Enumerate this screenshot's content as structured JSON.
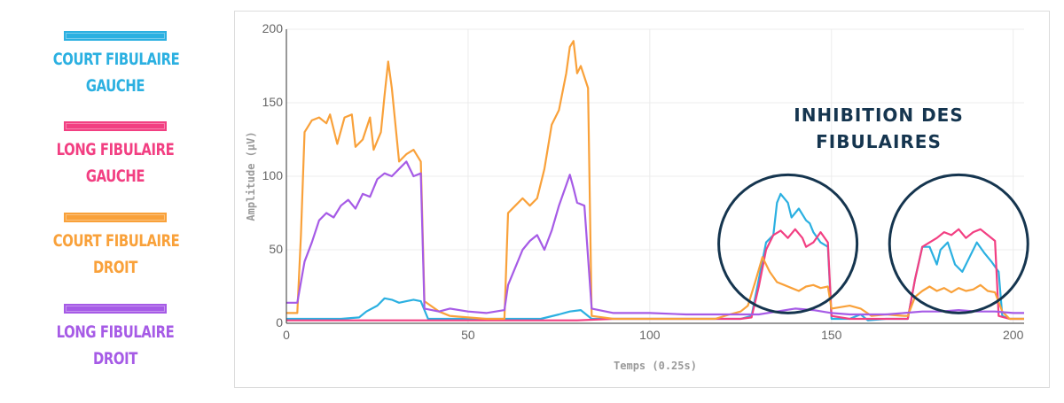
{
  "legend": [
    {
      "line1": "COURT FIBULAIRE",
      "line2": "GAUCHE",
      "color": "#2bb0e1"
    },
    {
      "line1": "LONG FIBULAIRE",
      "line2": "GAUCHE",
      "color": "#f23f82"
    },
    {
      "line1": "COURT FIBULAIRE",
      "line2": "DROIT",
      "color": "#f9a13a"
    },
    {
      "line1": "LONG FIBULAIRE",
      "line2": "DROIT",
      "color": "#a65be6"
    }
  ],
  "annotation": {
    "line1": "INHIBITION DES",
    "line2": "FIBULAIRES",
    "color": "#15354f"
  },
  "chart_data": {
    "type": "line",
    "title": "",
    "xlabel": "Temps (0.25s)",
    "ylabel": "Amplitude (µV)",
    "xlim": [
      0,
      203
    ],
    "ylim": [
      0,
      200
    ],
    "xticks": [
      0,
      50,
      100,
      150,
      200
    ],
    "yticks": [
      0,
      50,
      100,
      150,
      200
    ],
    "grid": true,
    "series": [
      {
        "name": "Court fibulaire gauche",
        "color": "#2bb0e1",
        "points": [
          [
            0,
            3
          ],
          [
            5,
            3
          ],
          [
            10,
            3
          ],
          [
            15,
            3
          ],
          [
            20,
            4
          ],
          [
            22,
            8
          ],
          [
            25,
            12
          ],
          [
            27,
            17
          ],
          [
            29,
            16
          ],
          [
            31,
            14
          ],
          [
            33,
            15
          ],
          [
            35,
            16
          ],
          [
            37,
            15
          ],
          [
            39,
            3
          ],
          [
            45,
            3
          ],
          [
            55,
            3
          ],
          [
            60,
            3
          ],
          [
            70,
            3
          ],
          [
            75,
            6
          ],
          [
            78,
            8
          ],
          [
            81,
            9
          ],
          [
            84,
            3
          ],
          [
            95,
            3
          ],
          [
            110,
            3
          ],
          [
            120,
            3
          ],
          [
            125,
            3
          ],
          [
            128,
            5
          ],
          [
            130,
            30
          ],
          [
            132,
            55
          ],
          [
            134,
            60
          ],
          [
            135,
            82
          ],
          [
            136,
            88
          ],
          [
            138,
            82
          ],
          [
            139,
            72
          ],
          [
            141,
            78
          ],
          [
            143,
            70
          ],
          [
            144,
            68
          ],
          [
            145,
            62
          ],
          [
            147,
            55
          ],
          [
            149,
            52
          ],
          [
            150,
            3
          ],
          [
            155,
            3
          ],
          [
            158,
            6
          ],
          [
            160,
            2
          ],
          [
            165,
            3
          ],
          [
            171,
            3
          ],
          [
            173,
            30
          ],
          [
            175,
            52
          ],
          [
            177,
            52
          ],
          [
            179,
            40
          ],
          [
            180,
            50
          ],
          [
            182,
            55
          ],
          [
            184,
            40
          ],
          [
            186,
            35
          ],
          [
            188,
            45
          ],
          [
            190,
            55
          ],
          [
            192,
            48
          ],
          [
            194,
            42
          ],
          [
            196,
            35
          ],
          [
            197,
            5
          ],
          [
            199,
            3
          ],
          [
            203,
            3
          ]
        ]
      },
      {
        "name": "Long fibulaire gauche",
        "color": "#f23f82",
        "points": [
          [
            0,
            2
          ],
          [
            10,
            2
          ],
          [
            20,
            2
          ],
          [
            30,
            2
          ],
          [
            40,
            2
          ],
          [
            50,
            2
          ],
          [
            60,
            2
          ],
          [
            70,
            2
          ],
          [
            80,
            2
          ],
          [
            90,
            3
          ],
          [
            100,
            3
          ],
          [
            110,
            3
          ],
          [
            120,
            3
          ],
          [
            125,
            3
          ],
          [
            128,
            4
          ],
          [
            130,
            25
          ],
          [
            132,
            50
          ],
          [
            134,
            60
          ],
          [
            136,
            63
          ],
          [
            138,
            58
          ],
          [
            140,
            64
          ],
          [
            142,
            58
          ],
          [
            143,
            52
          ],
          [
            145,
            55
          ],
          [
            147,
            62
          ],
          [
            149,
            55
          ],
          [
            150,
            5
          ],
          [
            155,
            3
          ],
          [
            165,
            3
          ],
          [
            171,
            3
          ],
          [
            173,
            30
          ],
          [
            175,
            52
          ],
          [
            177,
            55
          ],
          [
            179,
            58
          ],
          [
            181,
            62
          ],
          [
            183,
            60
          ],
          [
            185,
            64
          ],
          [
            187,
            58
          ],
          [
            189,
            62
          ],
          [
            191,
            64
          ],
          [
            193,
            60
          ],
          [
            195,
            56
          ],
          [
            196,
            5
          ],
          [
            199,
            3
          ],
          [
            203,
            3
          ]
        ]
      },
      {
        "name": "Court fibulaire droit",
        "color": "#f9a13a",
        "points": [
          [
            0,
            7
          ],
          [
            3,
            7
          ],
          [
            4,
            60
          ],
          [
            5,
            130
          ],
          [
            7,
            138
          ],
          [
            9,
            140
          ],
          [
            11,
            136
          ],
          [
            12,
            142
          ],
          [
            14,
            122
          ],
          [
            16,
            140
          ],
          [
            18,
            142
          ],
          [
            19,
            120
          ],
          [
            21,
            125
          ],
          [
            23,
            140
          ],
          [
            24,
            118
          ],
          [
            26,
            130
          ],
          [
            27,
            155
          ],
          [
            28,
            178
          ],
          [
            29,
            160
          ],
          [
            31,
            110
          ],
          [
            33,
            115
          ],
          [
            35,
            118
          ],
          [
            37,
            110
          ],
          [
            38,
            15
          ],
          [
            42,
            8
          ],
          [
            45,
            5
          ],
          [
            50,
            4
          ],
          [
            55,
            3
          ],
          [
            60,
            3
          ],
          [
            61,
            75
          ],
          [
            63,
            80
          ],
          [
            65,
            85
          ],
          [
            67,
            80
          ],
          [
            69,
            85
          ],
          [
            71,
            105
          ],
          [
            73,
            135
          ],
          [
            75,
            145
          ],
          [
            77,
            170
          ],
          [
            78,
            188
          ],
          [
            79,
            192
          ],
          [
            80,
            170
          ],
          [
            81,
            175
          ],
          [
            83,
            160
          ],
          [
            84,
            5
          ],
          [
            90,
            3
          ],
          [
            100,
            3
          ],
          [
            110,
            3
          ],
          [
            118,
            3
          ],
          [
            122,
            6
          ],
          [
            125,
            8
          ],
          [
            127,
            12
          ],
          [
            129,
            28
          ],
          [
            131,
            45
          ],
          [
            133,
            35
          ],
          [
            135,
            28
          ],
          [
            137,
            26
          ],
          [
            139,
            24
          ],
          [
            141,
            22
          ],
          [
            143,
            25
          ],
          [
            145,
            26
          ],
          [
            147,
            24
          ],
          [
            149,
            25
          ],
          [
            150,
            10
          ],
          [
            155,
            12
          ],
          [
            158,
            10
          ],
          [
            161,
            5
          ],
          [
            165,
            6
          ],
          [
            170,
            5
          ],
          [
            171,
            5
          ],
          [
            173,
            18
          ],
          [
            175,
            22
          ],
          [
            177,
            25
          ],
          [
            179,
            22
          ],
          [
            181,
            24
          ],
          [
            183,
            21
          ],
          [
            185,
            24
          ],
          [
            187,
            22
          ],
          [
            189,
            23
          ],
          [
            191,
            26
          ],
          [
            193,
            22
          ],
          [
            195,
            21
          ],
          [
            197,
            8
          ],
          [
            199,
            3
          ],
          [
            203,
            3
          ]
        ]
      },
      {
        "name": "Long fibulaire droit",
        "color": "#a65be6",
        "points": [
          [
            0,
            14
          ],
          [
            3,
            14
          ],
          [
            5,
            42
          ],
          [
            7,
            55
          ],
          [
            9,
            70
          ],
          [
            11,
            75
          ],
          [
            13,
            72
          ],
          [
            15,
            80
          ],
          [
            17,
            84
          ],
          [
            19,
            78
          ],
          [
            21,
            88
          ],
          [
            23,
            86
          ],
          [
            25,
            98
          ],
          [
            27,
            102
          ],
          [
            29,
            100
          ],
          [
            31,
            105
          ],
          [
            33,
            110
          ],
          [
            35,
            100
          ],
          [
            37,
            102
          ],
          [
            38,
            10
          ],
          [
            42,
            8
          ],
          [
            45,
            10
          ],
          [
            50,
            8
          ],
          [
            55,
            7
          ],
          [
            60,
            9
          ],
          [
            61,
            26
          ],
          [
            63,
            38
          ],
          [
            65,
            50
          ],
          [
            67,
            56
          ],
          [
            69,
            60
          ],
          [
            71,
            50
          ],
          [
            73,
            63
          ],
          [
            75,
            80
          ],
          [
            77,
            94
          ],
          [
            78,
            101
          ],
          [
            79,
            92
          ],
          [
            80,
            82
          ],
          [
            82,
            80
          ],
          [
            84,
            10
          ],
          [
            90,
            7
          ],
          [
            100,
            7
          ],
          [
            110,
            6
          ],
          [
            120,
            6
          ],
          [
            125,
            6
          ],
          [
            130,
            6
          ],
          [
            135,
            8
          ],
          [
            140,
            10
          ],
          [
            145,
            9
          ],
          [
            150,
            7
          ],
          [
            155,
            6
          ],
          [
            160,
            6
          ],
          [
            165,
            6
          ],
          [
            170,
            7
          ],
          [
            175,
            8
          ],
          [
            180,
            8
          ],
          [
            185,
            9
          ],
          [
            190,
            8
          ],
          [
            195,
            8
          ],
          [
            200,
            7
          ],
          [
            203,
            7
          ]
        ]
      }
    ]
  }
}
